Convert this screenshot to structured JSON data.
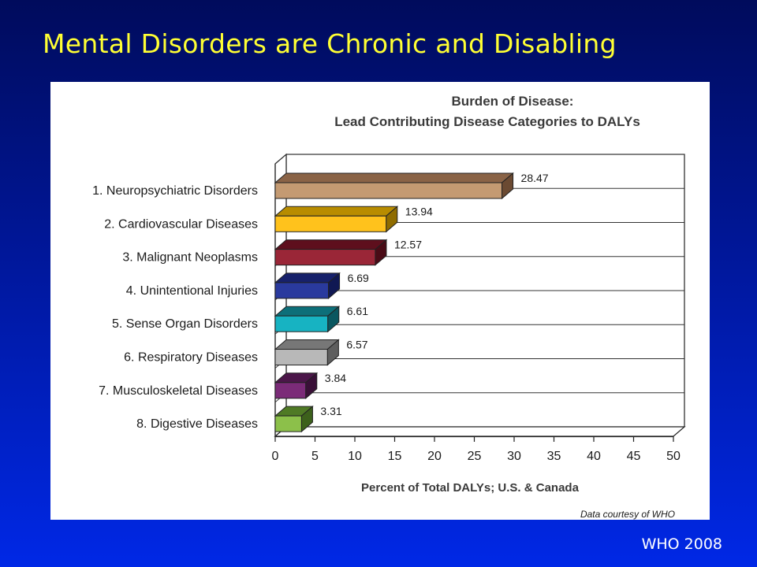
{
  "slide": {
    "title": "Mental Disorders are Chronic and Disabling",
    "source": "WHO 2008"
  },
  "chart_data": {
    "type": "bar",
    "orientation": "horizontal",
    "style": "3d",
    "title_line1": "Burden of Disease:",
    "title_line2": "Lead Contributing Disease Categories to DALYs",
    "xlabel": "Percent of Total DALYs; U.S. & Canada",
    "ylabel": "",
    "xlim": [
      0,
      50
    ],
    "xticks": [
      0,
      5,
      10,
      15,
      20,
      25,
      30,
      35,
      40,
      45,
      50
    ],
    "grid": "horizontal",
    "credit": "Data courtesy of WHO",
    "categories": [
      "1. Neuropsychiatric Disorders",
      "2. Cardiovascular Diseases",
      "3. Malignant Neoplasms",
      "4. Unintentional Injuries",
      "5. Sense Organ Disorders",
      "6. Respiratory Diseases",
      "7. Musculoskeletal Diseases",
      "8. Digestive Diseases"
    ],
    "values": [
      28.47,
      13.94,
      12.57,
      6.69,
      6.61,
      6.57,
      3.84,
      3.31
    ],
    "value_labels": [
      "28.47",
      "13.94",
      "12.57",
      "6.69",
      "6.61",
      "6.57",
      "3.84",
      "3.31"
    ],
    "colors": [
      {
        "front": "#c49a72",
        "top": "#8a6346",
        "side": "#6b4a32"
      },
      {
        "front": "#ffc21c",
        "top": "#b88c00",
        "side": "#8f6c00"
      },
      {
        "front": "#9a2637",
        "top": "#5e0f1d",
        "side": "#4a0b16"
      },
      {
        "front": "#2a3a9e",
        "top": "#17216b",
        "side": "#101853"
      },
      {
        "front": "#17b3c2",
        "top": "#0d6f79",
        "side": "#0a5760"
      },
      {
        "front": "#b8b8b8",
        "top": "#777777",
        "side": "#5e5e5e"
      },
      {
        "front": "#7b2b78",
        "top": "#4b1649",
        "side": "#3a1038"
      },
      {
        "front": "#8cc04a",
        "top": "#4f7a25",
        "side": "#3d611c"
      }
    ]
  }
}
